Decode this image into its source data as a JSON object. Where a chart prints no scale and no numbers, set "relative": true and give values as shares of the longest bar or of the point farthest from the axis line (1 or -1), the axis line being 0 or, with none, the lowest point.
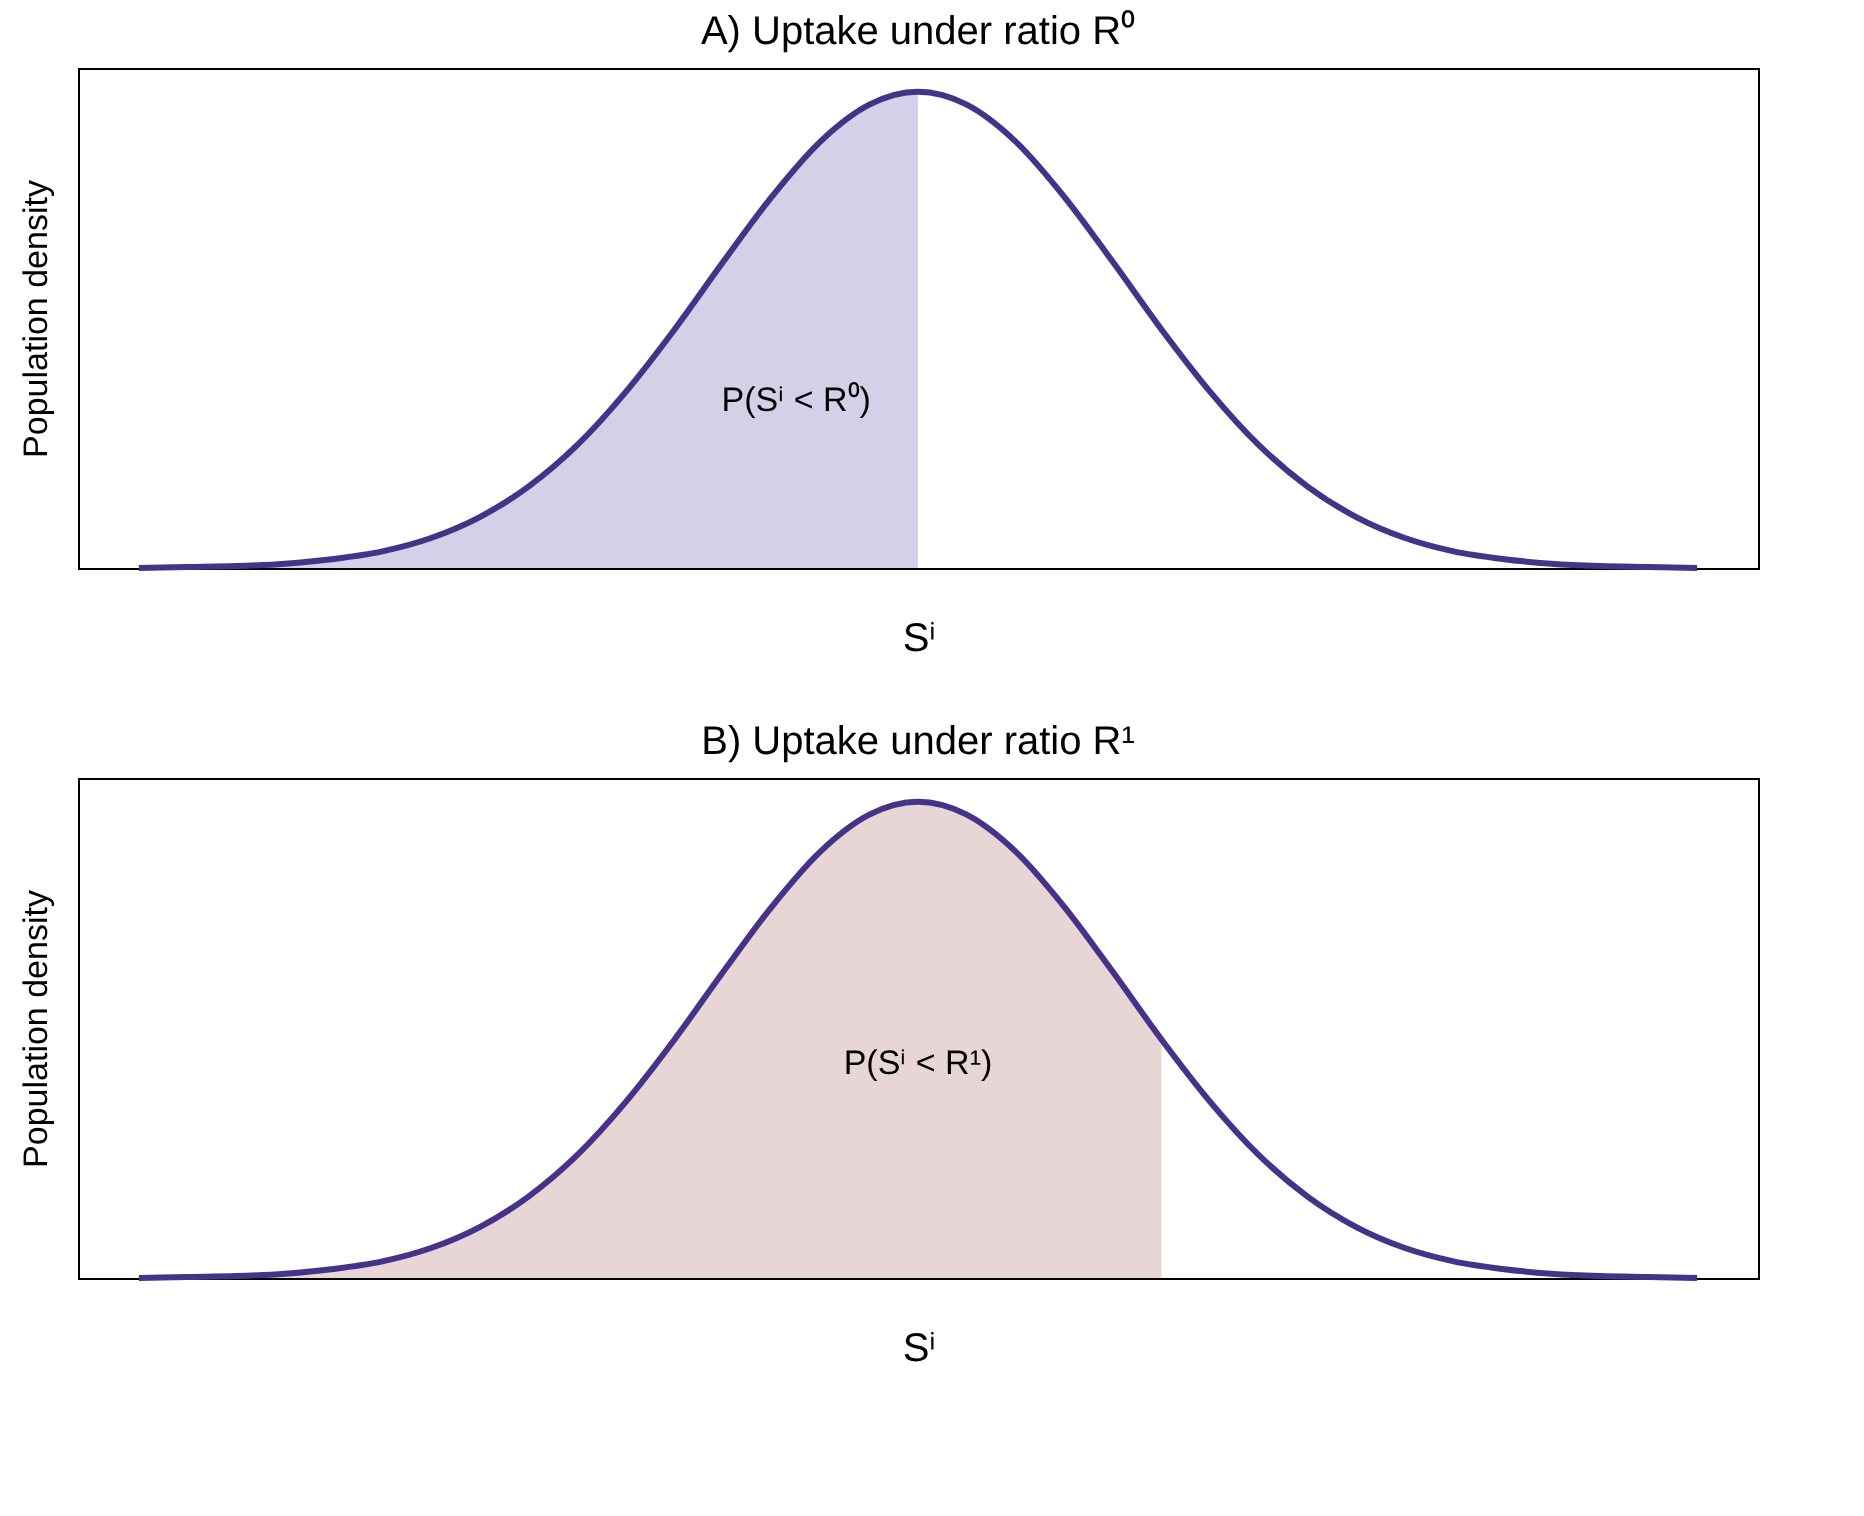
{
  "chart_data": [
    {
      "type": "line",
      "relative": true,
      "tick_labels": false,
      "title": "A) Uptake under ratio R⁰",
      "xlabel": "Sⁱ",
      "ylabel": "Population density",
      "categories": [
        null,
        null,
        null,
        null,
        null,
        null,
        null,
        null,
        null,
        null,
        null,
        null,
        null,
        null,
        null,
        null,
        null,
        null,
        null,
        null,
        null,
        null,
        null,
        null,
        null,
        null,
        null,
        null,
        null,
        null,
        null,
        null,
        null
      ],
      "annotations": [
        "P(Sⁱ < R⁰)"
      ],
      "series": [
        {
          "type": "area",
          "color": "#d4d0e8",
          "values": [
            0,
            0.002,
            0.004,
            0.009,
            0.019,
            0.035,
            0.063,
            0.107,
            0.171,
            0.258,
            0.37,
            0.501,
            0.643,
            0.78,
            0.896,
            0.973,
            1,
            null,
            null,
            null,
            null,
            null,
            null,
            null,
            null,
            null,
            null,
            null,
            null,
            null,
            null,
            null,
            null
          ]
        },
        {
          "type": "line",
          "color": "#45338a",
          "values": [
            0,
            0.002,
            0.004,
            0.009,
            0.019,
            0.035,
            0.063,
            0.107,
            0.171,
            0.258,
            0.37,
            0.501,
            0.643,
            0.78,
            0.896,
            0.973,
            1,
            0.973,
            0.896,
            0.78,
            0.643,
            0.501,
            0.37,
            0.258,
            0.171,
            0.107,
            0.063,
            0.035,
            0.019,
            0.009,
            0.004,
            0.002,
            0
          ]
        }
      ]
    },
    {
      "type": "line",
      "relative": true,
      "tick_labels": false,
      "title": "B) Uptake under ratio R¹",
      "xlabel": "Sⁱ",
      "ylabel": "Population density",
      "categories": [
        null,
        null,
        null,
        null,
        null,
        null,
        null,
        null,
        null,
        null,
        null,
        null,
        null,
        null,
        null,
        null,
        null,
        null,
        null,
        null,
        null,
        null,
        null,
        null,
        null,
        null,
        null,
        null,
        null,
        null,
        null,
        null,
        null
      ],
      "annotations": [
        "P(Sⁱ < R¹)"
      ],
      "series": [
        {
          "type": "area",
          "color": "#e8d6d6",
          "values": [
            0,
            0.002,
            0.004,
            0.009,
            0.019,
            0.035,
            0.063,
            0.107,
            0.171,
            0.258,
            0.37,
            0.501,
            0.643,
            0.78,
            0.896,
            0.973,
            1,
            0.973,
            0.896,
            0.78,
            0.643,
            0.501,
            null,
            null,
            null,
            null,
            null,
            null,
            null,
            null,
            null,
            null,
            null
          ]
        },
        {
          "type": "line",
          "color": "#45338a",
          "values": [
            0,
            0.002,
            0.004,
            0.009,
            0.019,
            0.035,
            0.063,
            0.107,
            0.171,
            0.258,
            0.37,
            0.501,
            0.643,
            0.78,
            0.896,
            0.973,
            1,
            0.973,
            0.896,
            0.78,
            0.643,
            0.501,
            0.37,
            0.258,
            0.171,
            0.107,
            0.063,
            0.035,
            0.019,
            0.009,
            0.004,
            0.002,
            0
          ]
        }
      ]
    }
  ]
}
